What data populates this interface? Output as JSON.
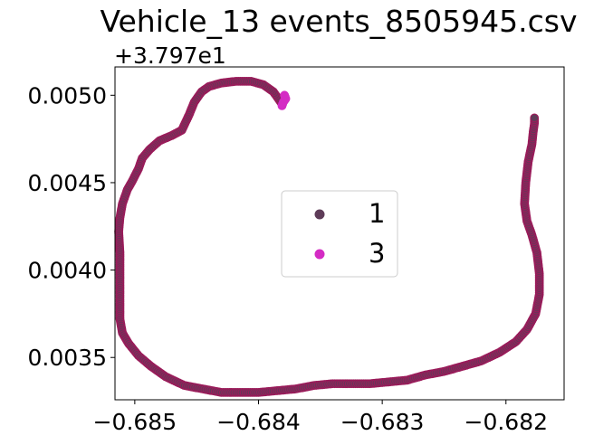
{
  "chart_data": {
    "type": "scatter",
    "title": "Vehicle_13 events_8505945.csv",
    "xlabel": "",
    "ylabel": "",
    "y_offset_label": "+3.797e1",
    "y_offset": 37.97,
    "xlim": [
      -0.68516,
      -0.68153
    ],
    "ylim": [
      0.003258,
      0.005162
    ],
    "x_ticks": [
      -0.685,
      -0.684,
      -0.683,
      -0.682
    ],
    "x_tick_labels": [
      "−0.685",
      "−0.684",
      "−0.683",
      "−0.682"
    ],
    "y_ticks": [
      0.0035,
      0.004,
      0.0045,
      0.005
    ],
    "y_tick_labels": [
      "0.0035",
      "0.0040",
      "0.0045",
      "0.0050"
    ],
    "grid": false,
    "legend_position": "center",
    "series": [
      {
        "name": "1",
        "color": "#5e3c58",
        "edge_color": "#9b1b5a",
        "points": [
          [
            -0.68382,
            0.00496
          ],
          [
            -0.68388,
            0.00502
          ],
          [
            -0.68396,
            0.00506
          ],
          [
            -0.68406,
            0.00508
          ],
          [
            -0.68418,
            0.00508
          ],
          [
            -0.6843,
            0.00507
          ],
          [
            -0.6844,
            0.00505
          ],
          [
            -0.68446,
            0.00502
          ],
          [
            -0.68452,
            0.00496
          ],
          [
            -0.68456,
            0.00489
          ],
          [
            -0.68462,
            0.0048
          ],
          [
            -0.6847,
            0.00477
          ],
          [
            -0.6848,
            0.00474
          ],
          [
            -0.68488,
            0.00469
          ],
          [
            -0.68494,
            0.00464
          ],
          [
            -0.68497,
            0.00458
          ],
          [
            -0.68502,
            0.00451
          ],
          [
            -0.68506,
            0.00446
          ],
          [
            -0.6851,
            0.00438
          ],
          [
            -0.68512,
            0.0043
          ],
          [
            -0.68513,
            0.00422
          ],
          [
            -0.68512,
            0.0041
          ],
          [
            -0.68512,
            0.00395
          ],
          [
            -0.68512,
            0.00382
          ],
          [
            -0.68512,
            0.00372
          ],
          [
            -0.6851,
            0.00364
          ],
          [
            -0.68505,
            0.00358
          ],
          [
            -0.68497,
            0.00351
          ],
          [
            -0.68487,
            0.00345
          ],
          [
            -0.68475,
            0.00339
          ],
          [
            -0.6846,
            0.00334
          ],
          [
            -0.68445,
            0.00332
          ],
          [
            -0.6843,
            0.0033
          ],
          [
            -0.68415,
            0.0033
          ],
          [
            -0.684,
            0.0033
          ],
          [
            -0.68385,
            0.00331
          ],
          [
            -0.6837,
            0.00332
          ],
          [
            -0.68355,
            0.00334
          ],
          [
            -0.6834,
            0.00335
          ],
          [
            -0.68325,
            0.00335
          ],
          [
            -0.6831,
            0.00335
          ],
          [
            -0.68295,
            0.00336
          ],
          [
            -0.6828,
            0.00337
          ],
          [
            -0.68265,
            0.0034
          ],
          [
            -0.6825,
            0.00342
          ],
          [
            -0.68235,
            0.00345
          ],
          [
            -0.6822,
            0.00348
          ],
          [
            -0.68205,
            0.00353
          ],
          [
            -0.68192,
            0.00359
          ],
          [
            -0.68183,
            0.00366
          ],
          [
            -0.68176,
            0.00375
          ],
          [
            -0.68173,
            0.00386
          ],
          [
            -0.68173,
            0.00398
          ],
          [
            -0.68175,
            0.0041
          ],
          [
            -0.68179,
            0.0042
          ],
          [
            -0.68183,
            0.00428
          ],
          [
            -0.68185,
            0.00438
          ],
          [
            -0.68184,
            0.0045
          ],
          [
            -0.68182,
            0.00462
          ],
          [
            -0.68179,
            0.00472
          ],
          [
            -0.68178,
            0.00479
          ],
          [
            -0.68177,
            0.00484
          ],
          [
            -0.68177,
            0.00487
          ]
        ]
      },
      {
        "name": "3",
        "color": "#d42bc4",
        "edge_color": "#d42bc4",
        "points": [
          [
            -0.68379,
            0.005
          ],
          [
            -0.68378,
            0.00498
          ],
          [
            -0.6838,
            0.00496
          ],
          [
            -0.68381,
            0.00494
          ]
        ]
      }
    ]
  }
}
